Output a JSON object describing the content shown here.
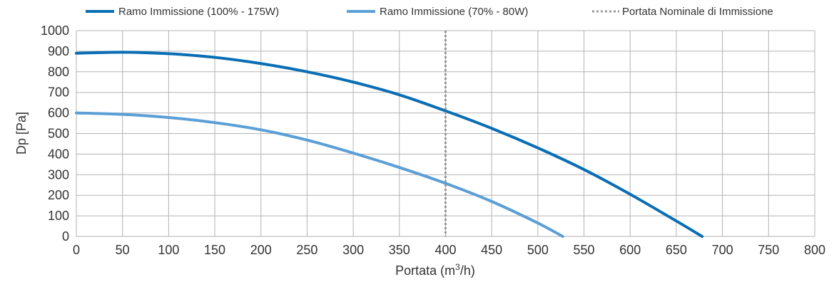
{
  "chart_data": {
    "type": "line",
    "xlabel": "Portata (m³/h)",
    "ylabel": "Dp [Pa]",
    "xlim": [
      0,
      800
    ],
    "ylim": [
      0,
      1000
    ],
    "x_ticks": [
      "0",
      "50",
      "100",
      "150",
      "200",
      "250",
      "300",
      "350",
      "400",
      "450",
      "500",
      "550",
      "600",
      "650",
      "700",
      "750",
      "800"
    ],
    "y_ticks": [
      "0",
      "100",
      "200",
      "300",
      "400",
      "500",
      "600",
      "700",
      "800",
      "900",
      "1000"
    ],
    "grid": true,
    "legend_position": "top",
    "series": [
      {
        "name": "Ramo Immissione (100% - 175W)",
        "color": "#0a6eb4",
        "x": [
          0,
          50,
          100,
          150,
          200,
          250,
          300,
          350,
          400,
          450,
          500,
          550,
          600,
          650,
          678
        ],
        "y": [
          890,
          895,
          888,
          870,
          840,
          800,
          750,
          688,
          610,
          525,
          430,
          325,
          205,
          75,
          0
        ]
      },
      {
        "name": "Ramo Immissione (70% - 80W)",
        "color": "#5b9fd6",
        "x": [
          0,
          50,
          100,
          150,
          200,
          250,
          300,
          350,
          400,
          450,
          500,
          527
        ],
        "y": [
          600,
          593,
          578,
          553,
          518,
          468,
          405,
          335,
          258,
          170,
          65,
          0
        ]
      }
    ],
    "reference_line": {
      "name": "Portata Nominale di Immissione",
      "x": 400,
      "color": "#999999"
    }
  }
}
